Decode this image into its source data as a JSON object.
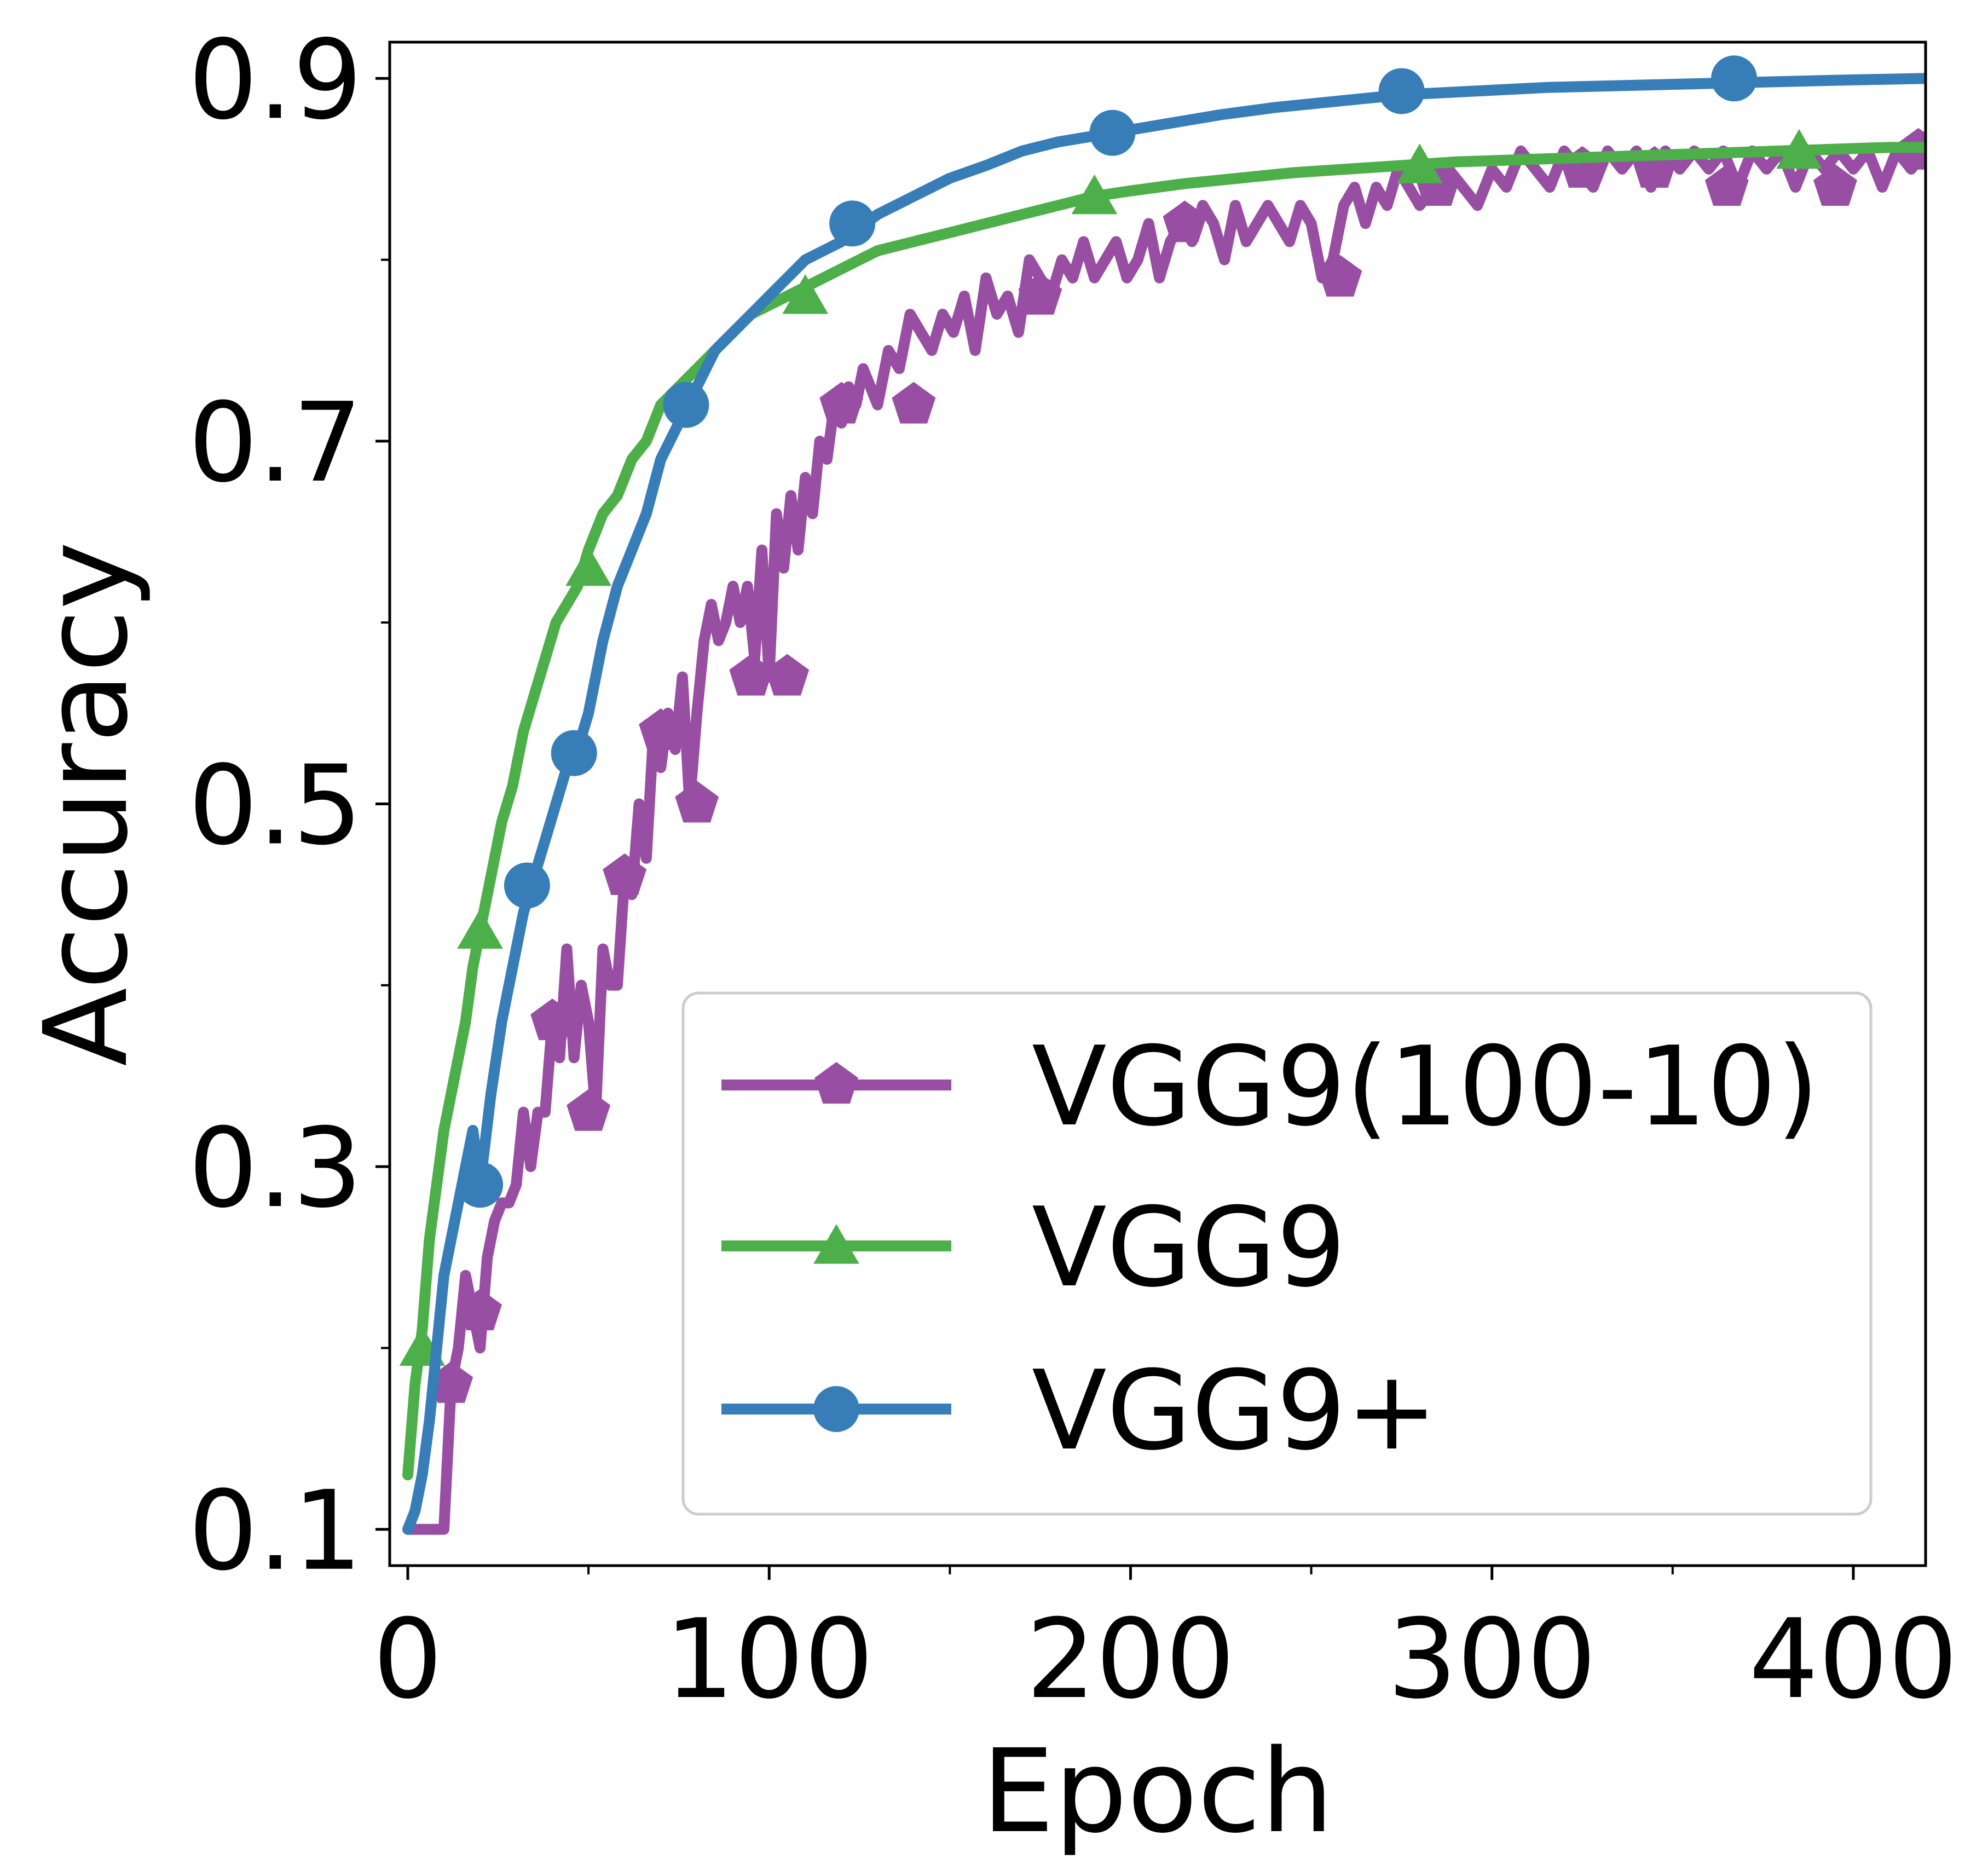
{
  "chart_data": {
    "type": "line",
    "title": "",
    "xlabel": "Epoch",
    "ylabel": "Accuracy",
    "xlim": [
      -5,
      420
    ],
    "ylim": [
      0.08,
      0.92
    ],
    "x_major_ticks": [
      0,
      100,
      200,
      300,
      400
    ],
    "x_minor_ticks": [
      50,
      150,
      250,
      350
    ],
    "x_tick_labels": [
      "0",
      "100",
      "200",
      "300",
      "400"
    ],
    "y_major_ticks": [
      0.1,
      0.3,
      0.5,
      0.7,
      0.9
    ],
    "y_minor_ticks": [
      0.2,
      0.4,
      0.6,
      0.8
    ],
    "y_tick_labels": [
      "0.1",
      "0.3",
      "0.5",
      "0.7",
      "0.9"
    ],
    "grid": false,
    "legend": {
      "placement": "lower-right"
    },
    "series": [
      {
        "name": "VGG9(100-10)",
        "color": "#984ea3",
        "marker": "pentagon",
        "x": [
          0,
          3,
          5,
          8,
          10,
          12,
          14,
          16,
          18,
          20,
          22,
          24,
          26,
          28,
          30,
          32,
          34,
          36,
          38,
          40,
          42,
          44,
          46,
          48,
          50,
          52,
          54,
          56,
          58,
          60,
          62,
          64,
          66,
          68,
          70,
          72,
          74,
          76,
          78,
          80,
          82,
          84,
          86,
          88,
          90,
          92,
          94,
          96,
          98,
          100,
          102,
          104,
          106,
          108,
          110,
          112,
          114,
          116,
          118,
          120,
          122,
          124,
          126,
          128,
          130,
          133,
          136,
          139,
          142,
          145,
          148,
          151,
          154,
          157,
          160,
          163,
          166,
          169,
          172,
          175,
          178,
          181,
          184,
          187,
          190,
          193,
          196,
          199,
          202,
          205,
          208,
          211,
          214,
          217,
          220,
          223,
          226,
          229,
          232,
          235,
          238,
          241,
          244,
          247,
          250,
          253,
          256,
          259,
          262,
          265,
          268,
          271,
          274,
          277,
          280,
          284,
          288,
          292,
          296,
          300,
          304,
          308,
          312,
          316,
          320,
          324,
          328,
          332,
          336,
          340,
          344,
          348,
          352,
          356,
          360,
          364,
          368,
          372,
          376,
          380,
          384,
          388,
          392,
          396,
          400,
          404,
          408,
          412,
          416,
          420
        ],
        "y": [
          0.1,
          0.1,
          0.1,
          0.1,
          0.1,
          0.18,
          0.2,
          0.24,
          0.22,
          0.2,
          0.25,
          0.27,
          0.28,
          0.28,
          0.29,
          0.33,
          0.3,
          0.33,
          0.33,
          0.38,
          0.36,
          0.42,
          0.36,
          0.4,
          0.38,
          0.33,
          0.42,
          0.4,
          0.4,
          0.46,
          0.45,
          0.5,
          0.47,
          0.54,
          0.52,
          0.55,
          0.53,
          0.57,
          0.5,
          0.55,
          0.59,
          0.61,
          0.59,
          0.6,
          0.62,
          0.6,
          0.62,
          0.58,
          0.64,
          0.57,
          0.66,
          0.63,
          0.67,
          0.64,
          0.68,
          0.66,
          0.7,
          0.69,
          0.72,
          0.71,
          0.73,
          0.72,
          0.74,
          0.73,
          0.72,
          0.75,
          0.74,
          0.77,
          0.76,
          0.75,
          0.77,
          0.76,
          0.78,
          0.75,
          0.79,
          0.77,
          0.78,
          0.76,
          0.8,
          0.79,
          0.78,
          0.8,
          0.79,
          0.81,
          0.79,
          0.8,
          0.81,
          0.79,
          0.8,
          0.82,
          0.79,
          0.81,
          0.82,
          0.81,
          0.83,
          0.82,
          0.8,
          0.83,
          0.81,
          0.82,
          0.83,
          0.82,
          0.81,
          0.83,
          0.82,
          0.79,
          0.8,
          0.83,
          0.84,
          0.82,
          0.84,
          0.83,
          0.85,
          0.84,
          0.83,
          0.84,
          0.85,
          0.84,
          0.83,
          0.85,
          0.84,
          0.86,
          0.85,
          0.84,
          0.86,
          0.85,
          0.84,
          0.86,
          0.85,
          0.86,
          0.84,
          0.86,
          0.85,
          0.86,
          0.85,
          0.86,
          0.84,
          0.86,
          0.85,
          0.86,
          0.84,
          0.86,
          0.85,
          0.86,
          0.85,
          0.86,
          0.84,
          0.86,
          0.85,
          0.86
        ],
        "marker_x": [
          12,
          20,
          40,
          50,
          60,
          70,
          80,
          95,
          105,
          120,
          140,
          175,
          215,
          258,
          285,
          325,
          345,
          365,
          395,
          418
        ],
        "marker_y": [
          0.18,
          0.22,
          0.38,
          0.33,
          0.46,
          0.54,
          0.5,
          0.57,
          0.57,
          0.72,
          0.72,
          0.78,
          0.82,
          0.79,
          0.84,
          0.85,
          0.85,
          0.84,
          0.84,
          0.86
        ]
      },
      {
        "name": "VGG9",
        "color": "#4daf4a",
        "marker": "triangle",
        "x": [
          0,
          2,
          4,
          6,
          8,
          10,
          12,
          14,
          16,
          18,
          20,
          23,
          26,
          29,
          32,
          35,
          38,
          41,
          44,
          47,
          50,
          54,
          58,
          62,
          66,
          70,
          75,
          80,
          85,
          90,
          95,
          100,
          105,
          110,
          115,
          120,
          130,
          140,
          150,
          160,
          170,
          180,
          190,
          200,
          215,
          230,
          245,
          260,
          275,
          290,
          305,
          320,
          335,
          350,
          365,
          380,
          395,
          410,
          420
        ],
        "y": [
          0.13,
          0.18,
          0.21,
          0.26,
          0.29,
          0.32,
          0.34,
          0.36,
          0.38,
          0.41,
          0.43,
          0.46,
          0.49,
          0.51,
          0.54,
          0.56,
          0.58,
          0.6,
          0.61,
          0.62,
          0.64,
          0.66,
          0.67,
          0.69,
          0.7,
          0.72,
          0.73,
          0.74,
          0.75,
          0.76,
          0.77,
          0.775,
          0.78,
          0.785,
          0.79,
          0.795,
          0.805,
          0.81,
          0.815,
          0.82,
          0.825,
          0.83,
          0.835,
          0.838,
          0.842,
          0.845,
          0.848,
          0.85,
          0.852,
          0.854,
          0.855,
          0.856,
          0.857,
          0.858,
          0.859,
          0.86,
          0.861,
          0.862,
          0.862
        ],
        "marker_x": [
          4,
          20,
          50,
          110,
          190,
          280,
          385
        ],
        "marker_y": [
          0.2,
          0.43,
          0.63,
          0.78,
          0.835,
          0.852,
          0.86
        ]
      },
      {
        "name": "VGG9+",
        "color": "#377eb8",
        "marker": "circle",
        "x": [
          0,
          2,
          4,
          6,
          8,
          10,
          12,
          14,
          16,
          18,
          20,
          23,
          26,
          29,
          32,
          35,
          38,
          41,
          44,
          47,
          50,
          54,
          58,
          62,
          66,
          70,
          75,
          80,
          85,
          90,
          95,
          100,
          105,
          110,
          115,
          120,
          130,
          140,
          150,
          160,
          170,
          180,
          195,
          210,
          225,
          240,
          255,
          275,
          295,
          315,
          335,
          355,
          375,
          395,
          420
        ],
        "y": [
          0.1,
          0.11,
          0.13,
          0.16,
          0.2,
          0.24,
          0.26,
          0.28,
          0.3,
          0.32,
          0.29,
          0.34,
          0.38,
          0.41,
          0.44,
          0.46,
          0.48,
          0.5,
          0.52,
          0.53,
          0.55,
          0.59,
          0.62,
          0.64,
          0.66,
          0.69,
          0.71,
          0.73,
          0.75,
          0.76,
          0.77,
          0.78,
          0.79,
          0.8,
          0.805,
          0.81,
          0.825,
          0.835,
          0.845,
          0.852,
          0.86,
          0.865,
          0.87,
          0.875,
          0.88,
          0.884,
          0.887,
          0.891,
          0.893,
          0.895,
          0.896,
          0.897,
          0.898,
          0.899,
          0.9
        ],
        "marker_x": [
          20,
          33,
          46,
          77,
          123,
          195,
          275,
          367
        ],
        "marker_y": [
          0.29,
          0.455,
          0.528,
          0.72,
          0.82,
          0.87,
          0.893,
          0.9
        ]
      }
    ]
  }
}
